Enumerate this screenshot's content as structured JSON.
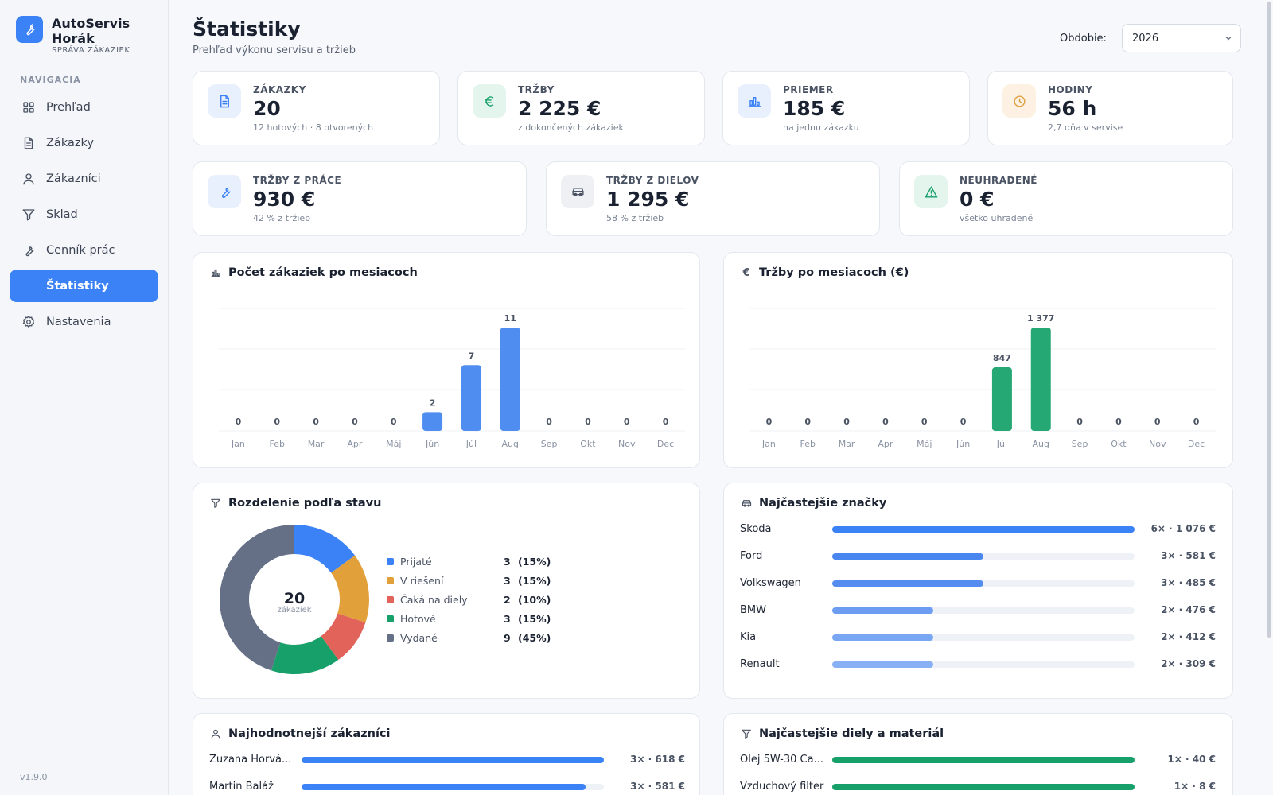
{
  "app": {
    "name": "AutoServis Horák",
    "subtitle": "SPRÁVA ZÁKAZIEK",
    "version": "v1.9.0"
  },
  "sidebar": {
    "section_title": "NAVIGACIA",
    "items": [
      {
        "label": "Prehľad",
        "icon": "grid-icon",
        "active": false
      },
      {
        "label": "Zákazky",
        "icon": "document-icon",
        "active": false
      },
      {
        "label": "Zákazníci",
        "icon": "user-icon",
        "active": false
      },
      {
        "label": "Sklad",
        "icon": "filter-icon",
        "active": false
      },
      {
        "label": "Cenník prác",
        "icon": "wrench-icon",
        "active": false
      },
      {
        "label": "Štatistiky",
        "icon": "chart-icon",
        "active": true
      },
      {
        "label": "Nastavenia",
        "icon": "gear-icon",
        "active": false
      }
    ]
  },
  "header": {
    "title": "Štatistiky",
    "subtitle": "Prehľad výkonu servisu a tržieb",
    "period_label": "Obdobie:",
    "period_value": "2026"
  },
  "kpis_row1": [
    {
      "label": "ZÁKAZKY",
      "value": "20",
      "sub": "12 hotových · 8 otvorených",
      "icon": "document-icon",
      "color": "#3b82f6",
      "bg": "#e8f0fd"
    },
    {
      "label": "TRŽBY",
      "value": "2 225 €",
      "sub": "z dokončených zákaziek",
      "icon": "euro-icon",
      "color": "#16a06a",
      "bg": "#e4f5ee"
    },
    {
      "label": "PRIEMER",
      "value": "185 €",
      "sub": "na jednu zákazku",
      "icon": "chart-icon",
      "color": "#3b82f6",
      "bg": "#e8f0fd"
    },
    {
      "label": "HODINY",
      "value": "56 h",
      "sub": "2,7 dňa v servise",
      "icon": "clock-icon",
      "color": "#e0a040",
      "bg": "#fcf1e2"
    }
  ],
  "kpis_row2": [
    {
      "label": "TRŽBY Z PRÁCE",
      "value": "930 €",
      "sub": "42 % z tržieb",
      "icon": "wrench-icon",
      "color": "#3b82f6",
      "bg": "#e8f0fd"
    },
    {
      "label": "TRŽBY Z DIELOV",
      "value": "1 295 €",
      "sub": "58 % z tržieb",
      "icon": "car-icon",
      "color": "#4a5363",
      "bg": "#eef0f3"
    },
    {
      "label": "NEUHRADENÉ",
      "value": "0 €",
      "sub": "všetko uhradené",
      "icon": "warning-icon",
      "color": "#16a06a",
      "bg": "#e4f5ee"
    }
  ],
  "panels": {
    "orders_chart_title": "Počet zákaziek po mesiacoch",
    "revenue_chart_title": "Tržby po mesiacoch (€)",
    "status_title": "Rozdelenie podľa stavu",
    "brands_title": "Najčastejšie značky",
    "customers_title": "Najhodnotnejší zákazníci",
    "parts_title": "Najčastejšie diely a materiál"
  },
  "chart_data": [
    {
      "type": "bar",
      "title": "Počet zákaziek po mesiacoch",
      "categories": [
        "Jan",
        "Feb",
        "Mar",
        "Apr",
        "Máj",
        "Jún",
        "Júl",
        "Aug",
        "Sep",
        "Okt",
        "Nov",
        "Dec"
      ],
      "values": [
        0,
        0,
        0,
        0,
        0,
        2,
        7,
        11,
        0,
        0,
        0,
        0
      ],
      "value_labels": [
        "0",
        "0",
        "0",
        "0",
        "0",
        "2",
        "7",
        "11",
        "0",
        "0",
        "0",
        "0"
      ],
      "ylim": [
        0,
        11
      ],
      "color": "#4f8ef0",
      "grid": true
    },
    {
      "type": "bar",
      "title": "Tržby po mesiacoch (€)",
      "categories": [
        "Jan",
        "Feb",
        "Mar",
        "Apr",
        "Máj",
        "Jún",
        "Júl",
        "Aug",
        "Sep",
        "Okt",
        "Nov",
        "Dec"
      ],
      "values": [
        0,
        0,
        0,
        0,
        0,
        0,
        847,
        1377,
        0,
        0,
        0,
        0
      ],
      "value_labels": [
        "0",
        "0",
        "0",
        "0",
        "0",
        "0",
        "847",
        "1 377",
        "0",
        "0",
        "0",
        "0"
      ],
      "ylim": [
        0,
        1377
      ],
      "color": "#26a875",
      "grid": true
    },
    {
      "type": "pie",
      "title": "Rozdelenie podľa stavu",
      "center_value": "20",
      "center_label": "zákaziek",
      "slices": [
        {
          "name": "Prijaté",
          "value": 3,
          "pct": "(15%)",
          "color": "#3b82f6"
        },
        {
          "name": "V riešení",
          "value": 3,
          "pct": "(15%)",
          "color": "#e2a03b"
        },
        {
          "name": "Čaká na diely",
          "value": 2,
          "pct": "(10%)",
          "color": "#e2635a"
        },
        {
          "name": "Hotové",
          "value": 3,
          "pct": "(15%)",
          "color": "#18a06a"
        },
        {
          "name": "Vydané",
          "value": 9,
          "pct": "(45%)",
          "color": "#657086"
        }
      ]
    },
    {
      "type": "bar",
      "title": "Najčastejšie značky",
      "categories": [
        "Škoda",
        "Ford",
        "Volkswagen",
        "BMW",
        "Kia",
        "Renault"
      ],
      "values": [
        6,
        3,
        3,
        2,
        2,
        2
      ],
      "value_labels": [
        "6× · 1 076 €",
        "3× · 581 €",
        "3× · 485 €",
        "2× · 476 €",
        "2× · 412 €",
        "2× · 309 €"
      ],
      "colors": [
        "#3b82f6",
        "#4a86f0",
        "#558cef",
        "#6c9df2",
        "#7aa7f3",
        "#88b0f4"
      ]
    },
    {
      "type": "bar",
      "title": "Najhodnotnejší zákazníci",
      "categories": [
        "Zuzana Horvá...",
        "Martin Baláž"
      ],
      "values": [
        618,
        581
      ],
      "value_labels": [
        "3× · 618 €",
        "3× · 581 €"
      ],
      "color": "#3b82f6"
    },
    {
      "type": "bar",
      "title": "Najčastejšie diely a materiál",
      "categories": [
        "Olej 5W-30 Ca...",
        "Vzduchový filter"
      ],
      "values": [
        1,
        1
      ],
      "value_labels": [
        "1× · 40 €",
        "1× · 8 €"
      ],
      "color": "#18a06a"
    }
  ]
}
